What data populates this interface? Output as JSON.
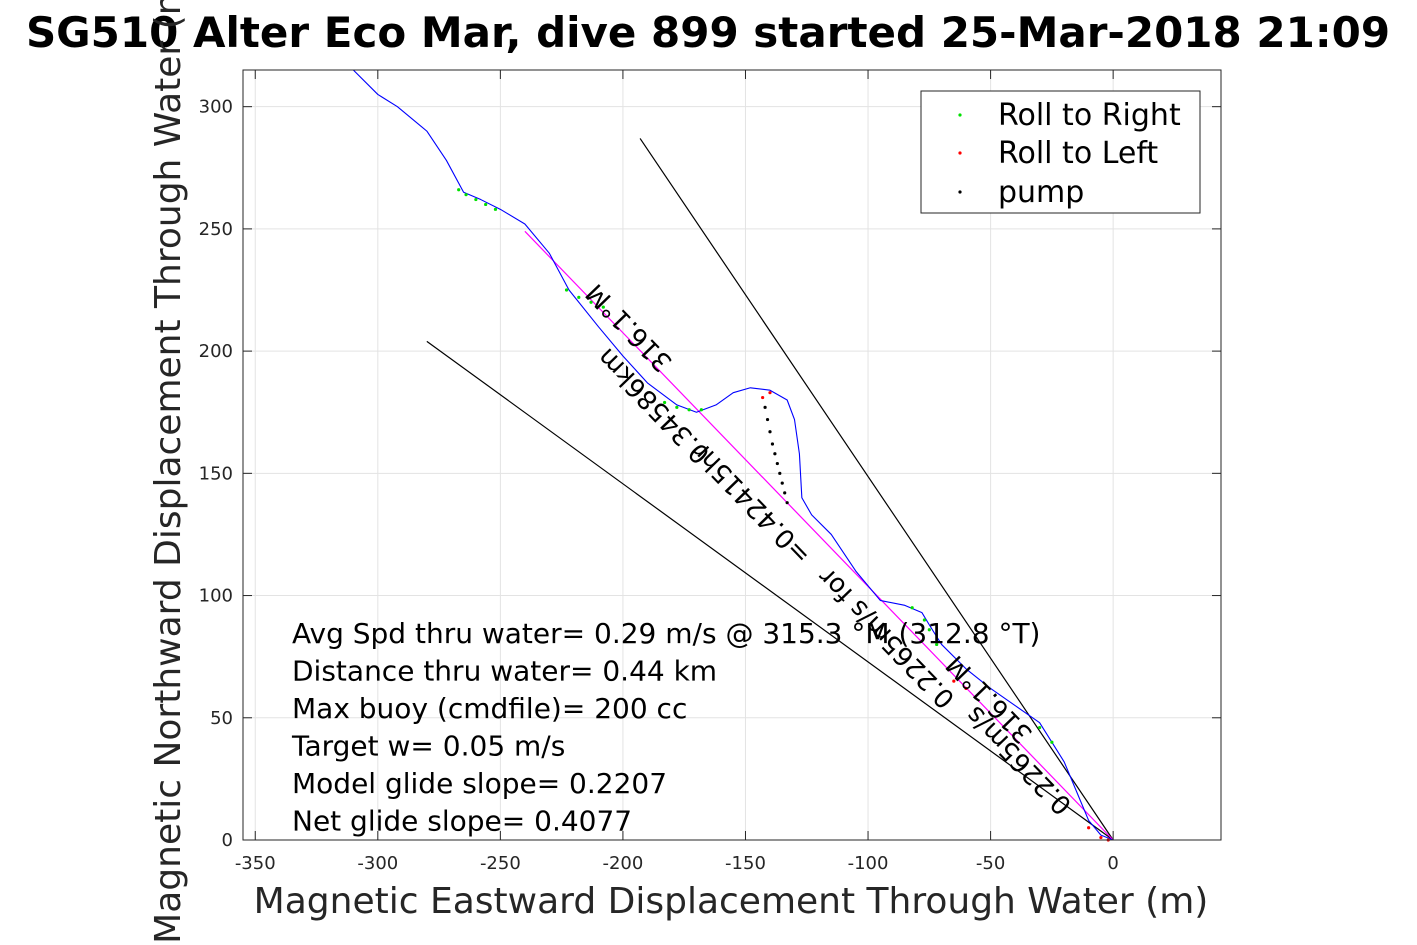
{
  "chart_data": {
    "type": "line",
    "title": "SG510 Alter Eco Mar, dive 899 started 25-Mar-2018 21:09",
    "xlabel": "Magnetic Eastward Displacement Through Water (m)",
    "ylabel": "Magnetic Northward Displacement Through Water (m)",
    "xlim": [
      -355,
      44
    ],
    "ylim": [
      0,
      315
    ],
    "xticks": [
      -350,
      -300,
      -250,
      -200,
      -150,
      -100,
      -50,
      0
    ],
    "yticks": [
      0,
      50,
      100,
      150,
      200,
      250,
      300
    ],
    "xtick_labels": [
      "-350",
      "-300",
      "-250",
      "-200",
      "-150",
      "-100",
      "-50",
      "0"
    ],
    "ytick_labels": [
      "0",
      "50",
      "100",
      "150",
      "200",
      "250",
      "300"
    ],
    "grid": true,
    "legend_position": "top-right",
    "legend": [
      {
        "label": "Roll to Right",
        "color": "#00e000"
      },
      {
        "label": "Roll to Left",
        "color": "#ff0000"
      },
      {
        "label": "pump",
        "color": "#000000"
      }
    ],
    "track": {
      "color": "#0000ff",
      "x": [
        0,
        -5,
        -10,
        -15,
        -20,
        -25,
        -30,
        -40,
        -50,
        -60,
        -70,
        -75,
        -78,
        -85,
        -95,
        -105,
        -115,
        -123,
        -127,
        -128,
        -130,
        -133,
        -140,
        -148,
        -155,
        -162,
        -170,
        -178,
        -190,
        -200,
        -210,
        -222,
        -230,
        -240,
        -250,
        -258,
        -265,
        -272,
        -280,
        -292,
        -300,
        -310
      ],
      "y": [
        0,
        2,
        8,
        20,
        32,
        40,
        48,
        55,
        62,
        70,
        80,
        88,
        93,
        96,
        98,
        110,
        125,
        133,
        140,
        158,
        172,
        180,
        184,
        185,
        183,
        178,
        175,
        178,
        187,
        198,
        210,
        225,
        240,
        252,
        258,
        262,
        265,
        278,
        290,
        300,
        305,
        315
      ]
    },
    "roll_right": {
      "color": "#00e000",
      "x": [
        -25,
        -30,
        -72,
        -75,
        -77,
        -82,
        -168,
        -173,
        -178,
        -183,
        -208,
        -213,
        -218,
        -223,
        -252,
        -256,
        -260,
        -264,
        -267
      ],
      "y": [
        40,
        46,
        80,
        86,
        90,
        95,
        176,
        176,
        177,
        179,
        218,
        220,
        222,
        225,
        258,
        260,
        262,
        264,
        266
      ]
    },
    "roll_left": {
      "color": "#ff0000",
      "x": [
        -2,
        -5,
        -10,
        -60,
        -65,
        -140,
        -143
      ],
      "y": [
        0,
        1,
        5,
        62,
        65,
        183,
        181
      ]
    },
    "pump": {
      "color": "#000000",
      "x": [
        -133,
        -134,
        -135,
        -136,
        -137,
        -138,
        -139,
        -140,
        -141,
        -142
      ],
      "y": [
        138,
        142,
        146,
        150,
        154,
        158,
        162,
        167,
        172,
        177
      ]
    },
    "course_line": {
      "color": "#ff00ff",
      "x": [
        0,
        -240
      ],
      "y": [
        0,
        249
      ]
    },
    "envelope_lines": [
      {
        "color": "#000000",
        "x": [
          0,
          -193
        ],
        "y": [
          0,
          287
        ]
      },
      {
        "color": "#000000",
        "x": [
          0,
          -280
        ],
        "y": [
          0,
          204
        ]
      }
    ],
    "rotated_labels": [
      {
        "text": "316.1°M",
        "x": -195,
        "y": 212,
        "angle": 226
      },
      {
        "text": "0.34586km",
        "x": -185,
        "y": 180,
        "angle": 226
      },
      {
        "text": "=0.42415hr",
        "x": -145,
        "y": 140,
        "angle": 226
      },
      {
        "text": "0.2265m/s for",
        "x": -90,
        "y": 85,
        "angle": 226
      },
      {
        "text": "316.1°M",
        "x": -48,
        "y": 60,
        "angle": 226
      },
      {
        "text": "0.2265m/s",
        "x": -36,
        "y": 35,
        "angle": 226
      }
    ],
    "annotations": [
      "Avg Spd thru water=  0.29 m/s @ 315.3 °M (312.8 °T)",
      "Distance thru water=  0.44 km",
      "Max buoy (cmdfile)= 200 cc",
      "Target w= 0.05 m/s",
      "Model glide slope= 0.2207",
      "Net glide slope= 0.4077"
    ]
  }
}
